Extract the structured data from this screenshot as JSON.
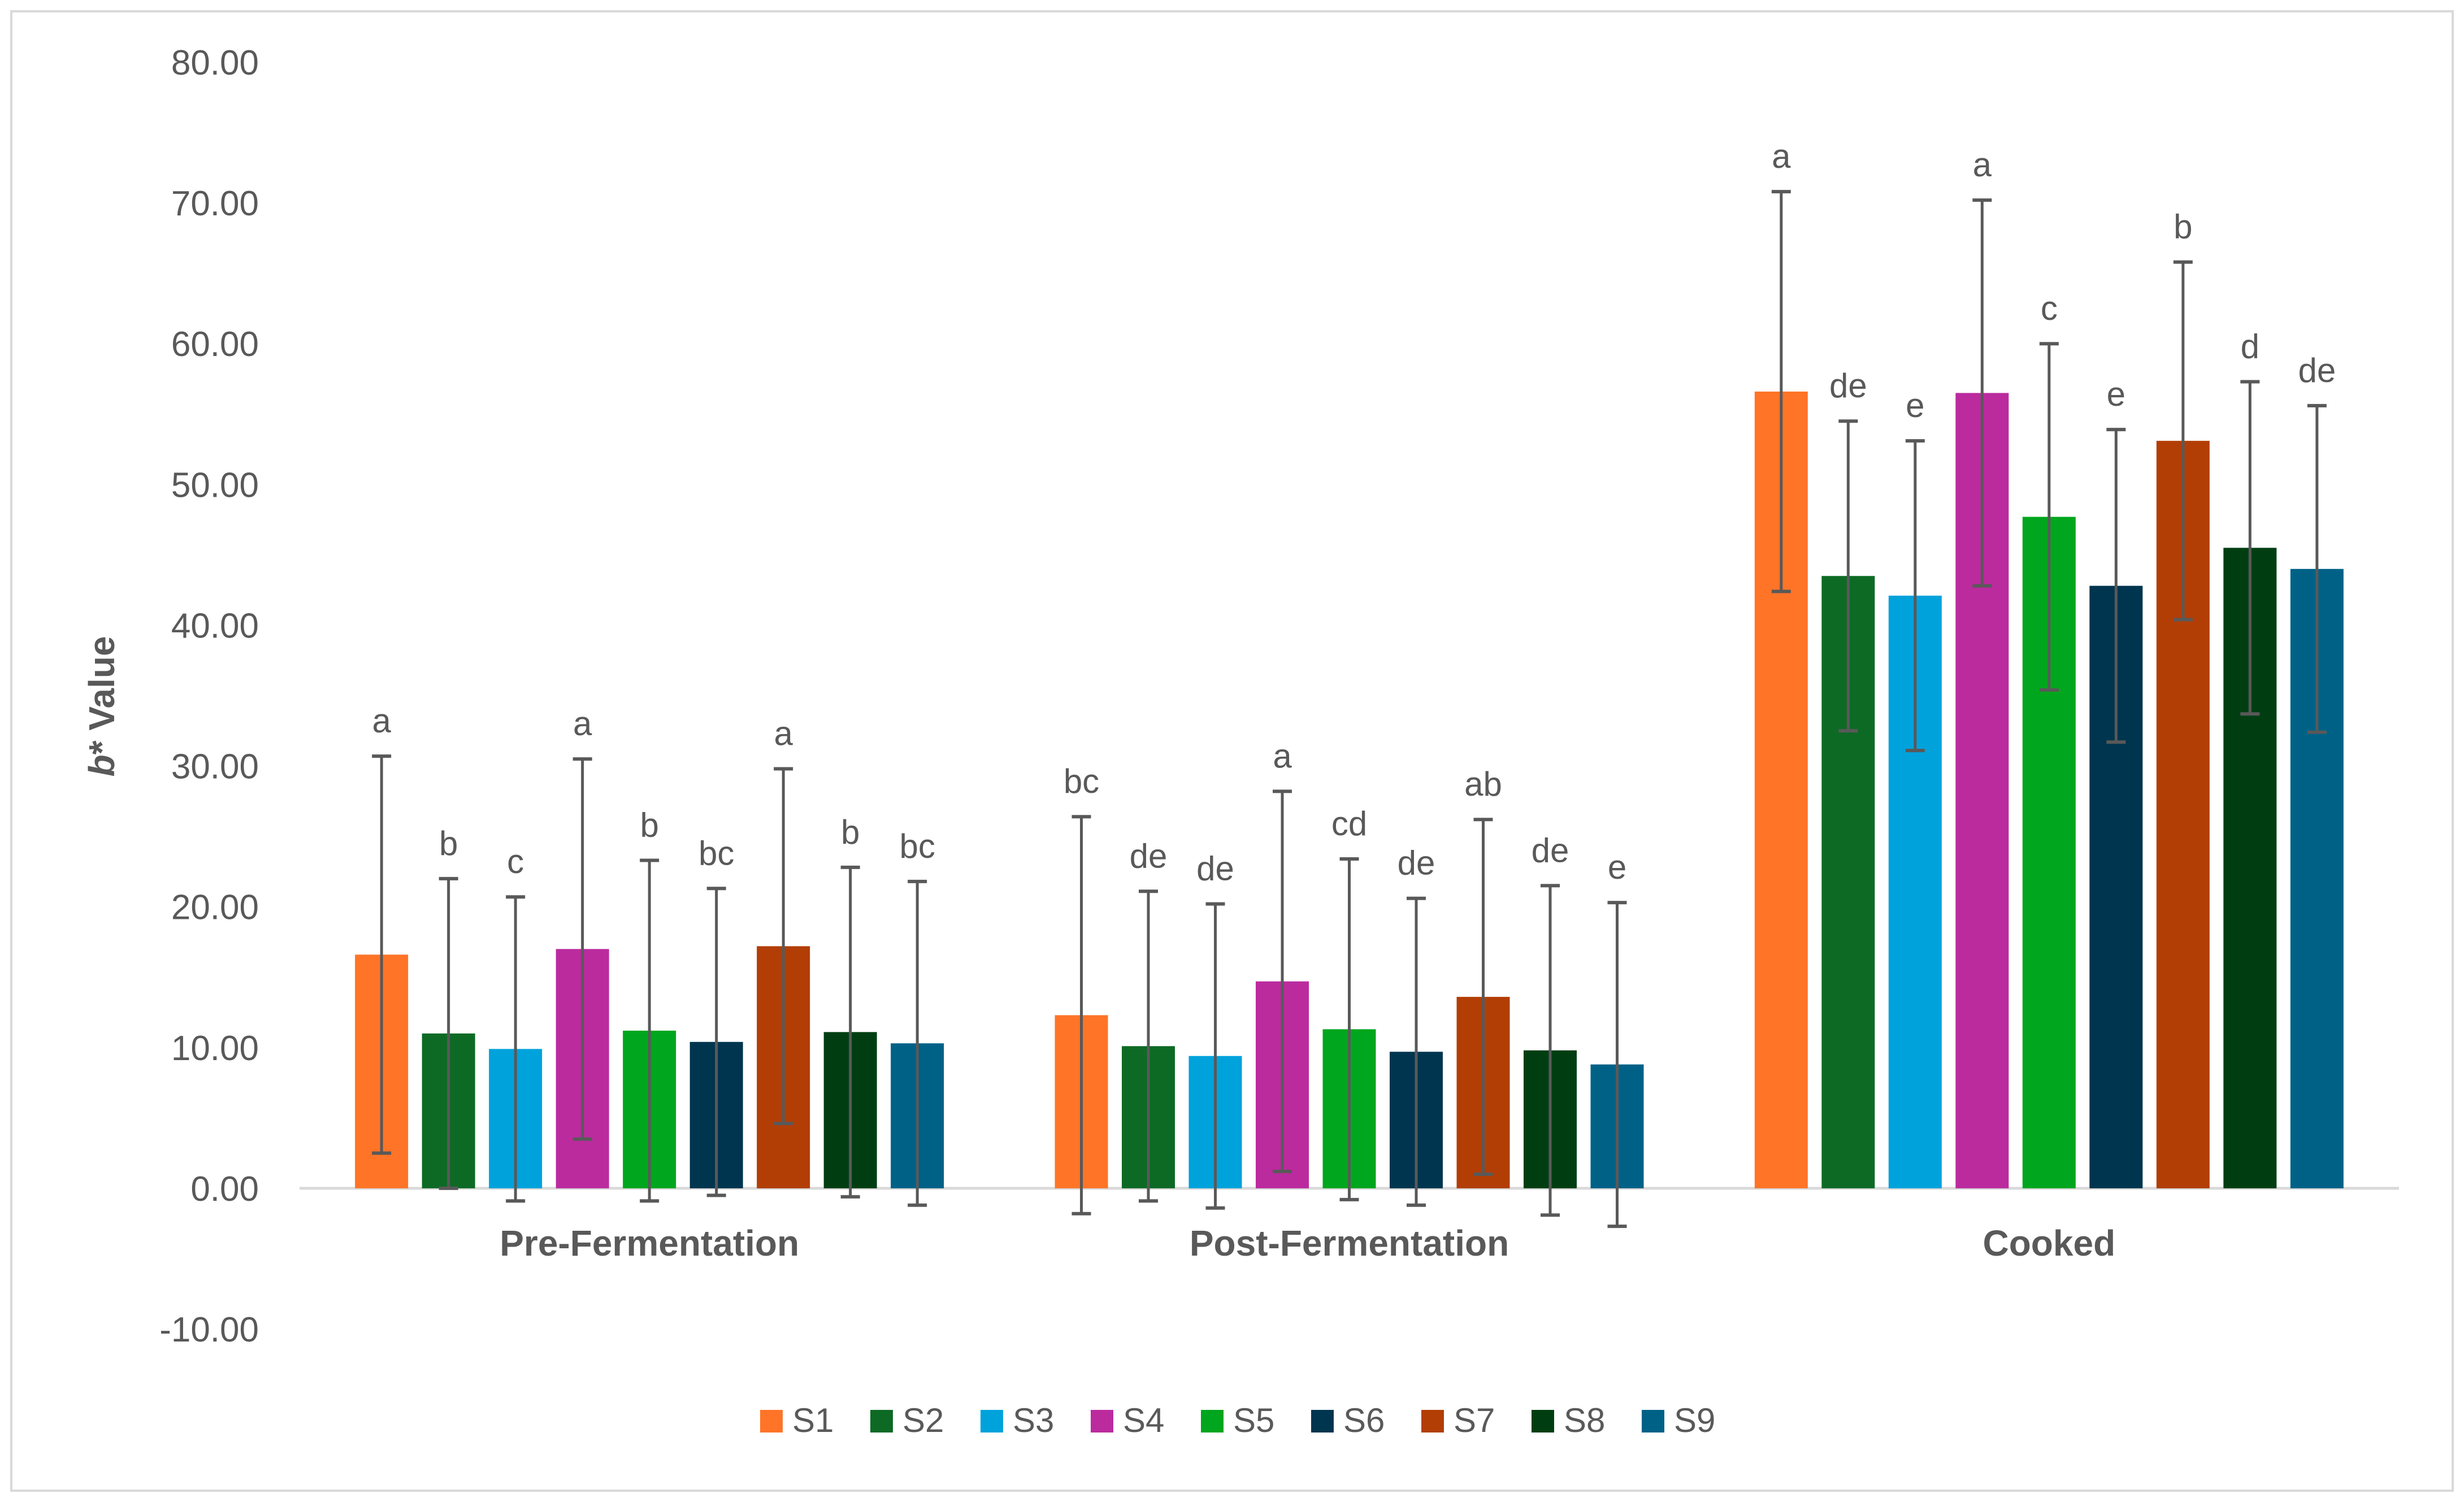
{
  "chart_data": {
    "type": "bar",
    "title": "",
    "xlabel": "",
    "ylabel_italic": "b",
    "ylabel_rest": "* Value",
    "ylim": [
      -10,
      80
    ],
    "y_ticks": [
      -10,
      0,
      10,
      20,
      30,
      40,
      50,
      60,
      70,
      80
    ],
    "y_tick_labels": [
      "-10.00",
      "0.00",
      "10.00",
      "20.00",
      "30.00",
      "40.00",
      "50.00",
      "60.00",
      "70.00",
      "80.00"
    ],
    "grid": false,
    "legend_position": "bottom",
    "categories": [
      "Pre-Fermentation",
      "Post-Fermentation",
      "Cooked"
    ],
    "series": [
      {
        "name": "S1",
        "color": "#FF7427",
        "values": [
          16.6,
          12.3,
          56.6
        ],
        "error": [
          14.1,
          14.1,
          14.2
        ],
        "letters": [
          "a",
          "bc",
          "a"
        ]
      },
      {
        "name": "S2",
        "color": "#0D6A25",
        "values": [
          11.0,
          10.1,
          43.5
        ],
        "error": [
          11.0,
          11.0,
          11.0
        ],
        "letters": [
          "b",
          "de",
          "de"
        ]
      },
      {
        "name": "S3",
        "color": "#00A2DC",
        "values": [
          9.9,
          9.4,
          42.1
        ],
        "error": [
          10.8,
          10.8,
          11.0
        ],
        "letters": [
          "c",
          "de",
          "e"
        ]
      },
      {
        "name": "S4",
        "color": "#BB2B9E",
        "values": [
          17.0,
          14.7,
          56.5
        ],
        "error": [
          13.5,
          13.5,
          13.7
        ],
        "letters": [
          "a",
          "a",
          "a"
        ]
      },
      {
        "name": "S5",
        "color": "#00A61D",
        "values": [
          11.2,
          11.3,
          47.7
        ],
        "error": [
          12.1,
          12.1,
          12.3
        ],
        "letters": [
          "b",
          "cd",
          "c"
        ]
      },
      {
        "name": "S6",
        "color": "#00354F",
        "values": [
          10.4,
          9.7,
          42.8
        ],
        "error": [
          10.9,
          10.9,
          11.1
        ],
        "letters": [
          "bc",
          "de",
          "e"
        ]
      },
      {
        "name": "S7",
        "color": "#B23E06",
        "values": [
          17.2,
          13.6,
          53.1
        ],
        "error": [
          12.6,
          12.6,
          12.7
        ],
        "letters": [
          "a",
          "ab",
          "b"
        ]
      },
      {
        "name": "S8",
        "color": "#003E12",
        "values": [
          11.1,
          9.8,
          45.5
        ],
        "error": [
          11.7,
          11.7,
          11.8
        ],
        "letters": [
          "b",
          "de",
          "d"
        ]
      },
      {
        "name": "S9",
        "color": "#006187",
        "values": [
          10.3,
          8.8,
          44.0
        ],
        "error": [
          11.5,
          11.5,
          11.6
        ],
        "letters": [
          "bc",
          "e",
          "de"
        ]
      }
    ]
  },
  "colors": {
    "axis": "#d9d9d9",
    "text": "#595959",
    "error_bar": "#595959",
    "frame": "#d9d9d9"
  }
}
